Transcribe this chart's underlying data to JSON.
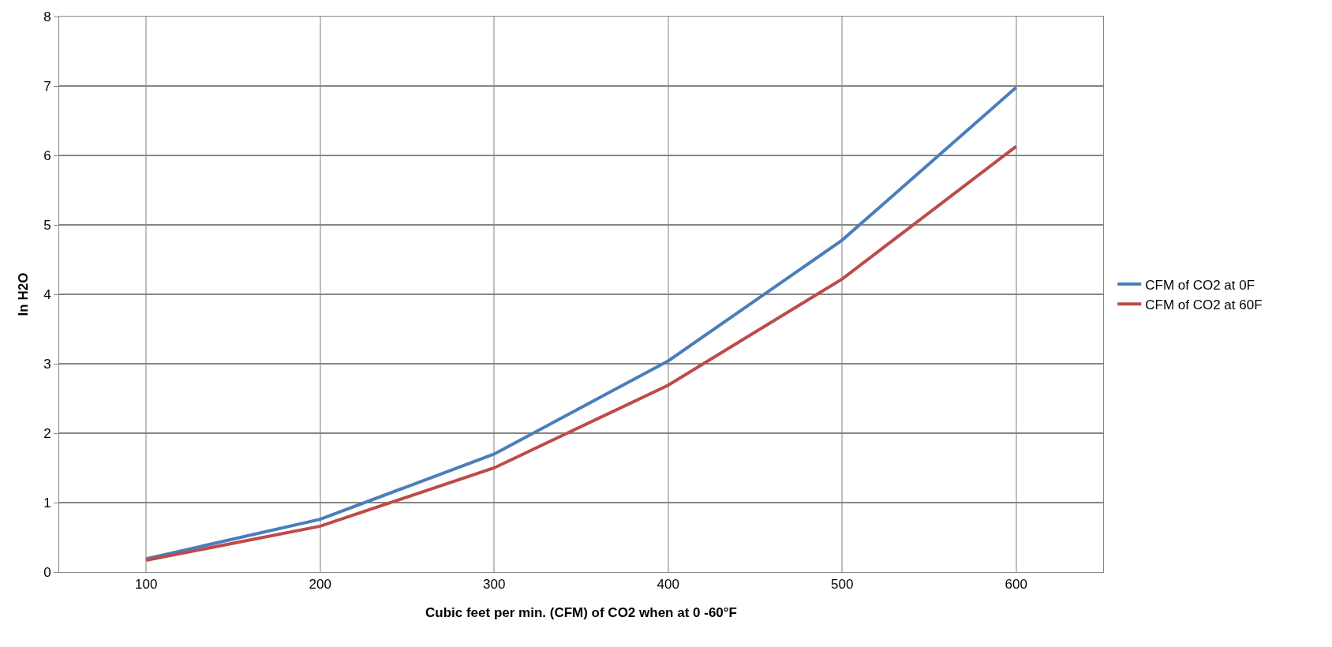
{
  "chart_data": {
    "type": "line",
    "xlabel": "Cubic feet per min. (CFM) of CO2 when at 0 -60°F",
    "ylabel": "In H2O",
    "categories": [
      "100",
      "200",
      "300",
      "400",
      "500",
      "600"
    ],
    "series": [
      {
        "name": "CFM of CO2 at 0F",
        "color": "#4a7ebb",
        "values": [
          0.19,
          0.76,
          1.7,
          3.04,
          4.78,
          6.98
        ]
      },
      {
        "name": "CFM of CO2 at 60F",
        "color": "#be4b48",
        "values": [
          0.17,
          0.66,
          1.5,
          2.69,
          4.22,
          6.13
        ]
      }
    ],
    "ylim": [
      0,
      8
    ],
    "yticks": [
      0,
      1,
      2,
      3,
      4,
      5,
      6,
      7,
      8
    ],
    "grid": true,
    "legend": "right",
    "marker": "none",
    "line_style": "solid"
  }
}
